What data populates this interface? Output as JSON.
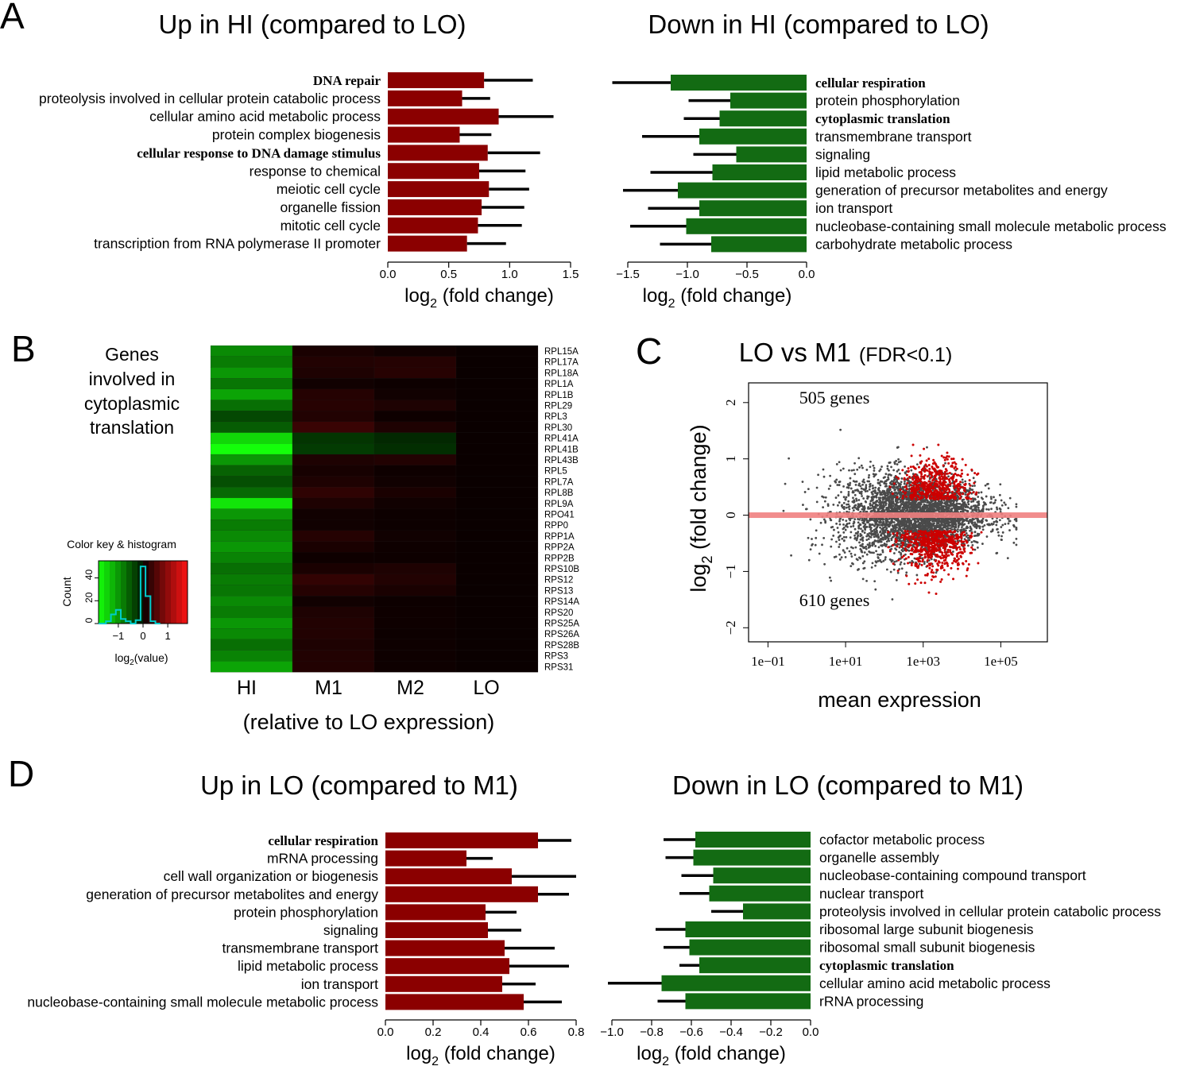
{
  "colors": {
    "up_bar": "#8b0000",
    "down_bar": "#136b13",
    "error_bar": "#000000",
    "scatter_gray": "#4a4a4a",
    "scatter_red": "#cc0000",
    "zero_line": "#f08080",
    "hist_line": "#00cccc"
  },
  "panel_labels": {
    "a": "A",
    "b": "B",
    "c": "C",
    "d": "D"
  },
  "axis_titles": {
    "log2": "log",
    "log2_sub": "2",
    "fold": " (fold change)"
  },
  "chart_data": [
    {
      "id": "A_up",
      "type": "bar",
      "orientation": "horizontal",
      "title": "Up in HI (compared to LO)",
      "xlabel": "log2 (fold change)",
      "xlim": [
        0,
        1.5
      ],
      "xticks": [
        0,
        0.5,
        1,
        1.5
      ],
      "xtick_labels": [
        "0.0",
        "0.5",
        "1.0",
        "1.5"
      ],
      "categories": [
        "DNA repair",
        "proteolysis involved in cellular protein catabolic process",
        "cellular amino acid metabolic process",
        "protein complex biogenesis",
        "cellular response to DNA damage stimulus",
        "response to chemical",
        "meiotic cell cycle",
        "organelle fission",
        "mitotic cell cycle",
        "transcription from RNA polymerase II promoter"
      ],
      "bold": [
        true,
        false,
        false,
        false,
        true,
        false,
        false,
        false,
        false,
        false
      ],
      "values": [
        0.79,
        0.61,
        0.91,
        0.59,
        0.82,
        0.75,
        0.83,
        0.77,
        0.74,
        0.65
      ],
      "errors": [
        0.4,
        0.23,
        0.45,
        0.26,
        0.43,
        0.38,
        0.33,
        0.35,
        0.36,
        0.32
      ]
    },
    {
      "id": "A_down",
      "type": "bar",
      "orientation": "horizontal",
      "title": "Down in HI (compared to LO)",
      "xlabel": "log2 (fold change)",
      "xlim": [
        -1.5,
        0
      ],
      "xticks": [
        -1.5,
        -1,
        -0.5,
        0
      ],
      "xtick_labels": [
        "−1.5",
        "−1.0",
        "−0.5",
        "0.0"
      ],
      "categories": [
        "cellular respiration",
        "protein phosphorylation",
        "cytoplasmic translation",
        "transmembrane transport",
        "signaling",
        "lipid metabolic process",
        "generation of precursor metabolites and energy",
        "ion transport",
        "nucleobase-containing small molecule metabolic process",
        "carbohydrate metabolic process"
      ],
      "bold": [
        true,
        false,
        true,
        false,
        false,
        false,
        false,
        false,
        false,
        false
      ],
      "values": [
        -1.14,
        -0.64,
        -0.73,
        -0.9,
        -0.59,
        -0.79,
        -1.08,
        -0.9,
        -1.01,
        -0.8
      ],
      "errors": [
        0.49,
        0.35,
        0.3,
        0.48,
        0.36,
        0.52,
        0.46,
        0.43,
        0.47,
        0.43
      ]
    },
    {
      "id": "B_heatmap",
      "type": "heatmap",
      "side_text": [
        "Genes",
        "involved in",
        "cytoplasmic",
        "translation"
      ],
      "columns": [
        "HI",
        "M1",
        "M2",
        "LO"
      ],
      "xlabel": "(relative to LO expression)",
      "rows": [
        "RPL15A",
        "RPL17A",
        "RPL18A",
        "RPL1A",
        "RPL1B",
        "RPL29",
        "RPL3",
        "RPL30",
        "RPL41A",
        "RPL41B",
        "RPL43B",
        "RPL5",
        "RPL7A",
        "RPL8B",
        "RPL9A",
        "RPO41",
        "RPP0",
        "RPP1A",
        "RPP2A",
        "RPP2B",
        "RPS10B",
        "RPS12",
        "RPS13",
        "RPS14A",
        "RPS20",
        "RPS25A",
        "RPS26A",
        "RPS28B",
        "RPS3",
        "RPS31"
      ],
      "values": [
        [
          -0.9,
          0.12,
          0.05,
          0
        ],
        [
          -0.8,
          0.18,
          0.2,
          0
        ],
        [
          -1.0,
          0.15,
          0.22,
          0
        ],
        [
          -0.75,
          0.05,
          0.02,
          0
        ],
        [
          -1.1,
          0.2,
          0.05,
          0
        ],
        [
          -0.7,
          0.22,
          0.15,
          0
        ],
        [
          -0.4,
          0.18,
          0.03,
          0
        ],
        [
          -0.55,
          0.35,
          0.15,
          0
        ],
        [
          -1.5,
          -0.25,
          -0.15,
          0
        ],
        [
          -1.8,
          -0.3,
          -0.2,
          0
        ],
        [
          -1.0,
          0.15,
          0.18,
          0
        ],
        [
          -0.6,
          0.1,
          0.03,
          0
        ],
        [
          -0.45,
          0.15,
          0.05,
          0
        ],
        [
          -0.65,
          0.28,
          0.12,
          0
        ],
        [
          -1.6,
          0.15,
          0.05,
          0
        ],
        [
          -1.0,
          0.05,
          0.02,
          0
        ],
        [
          -0.8,
          0.05,
          0.02,
          0
        ],
        [
          -0.9,
          0.2,
          0.05,
          0
        ],
        [
          -1.0,
          0.12,
          0.03,
          0
        ],
        [
          -0.85,
          0.03,
          0.02,
          0
        ],
        [
          -0.7,
          0.12,
          0.15,
          0
        ],
        [
          -0.8,
          0.3,
          0.18,
          0
        ],
        [
          -0.75,
          0.2,
          0.12,
          0
        ],
        [
          -0.9,
          0.05,
          0.02,
          0
        ],
        [
          -0.8,
          0.15,
          0.03,
          0
        ],
        [
          -1.0,
          0.18,
          0.03,
          0
        ],
        [
          -0.9,
          0.18,
          0.02,
          0
        ],
        [
          -0.7,
          0.15,
          0.03,
          0
        ],
        [
          -0.85,
          0.18,
          0.03,
          0
        ],
        [
          -1.1,
          0.18,
          0.03,
          0
        ]
      ],
      "color_key": {
        "title": "Color key & histogram",
        "ylabel": "Count",
        "xlabel": "log2(value)",
        "xlabel_main": "log",
        "xlabel_sub": "2",
        "xlabel_tail": "(value)",
        "xticks": [
          -1,
          0,
          1
        ],
        "xtick_labels": [
          "−1",
          "0",
          "1"
        ],
        "yticks": [
          0,
          20,
          40
        ],
        "ytick_labels": [
          "0",
          "20",
          "40"
        ],
        "xlim": [
          -1.8,
          1.8
        ],
        "ylim": [
          0,
          55
        ]
      }
    },
    {
      "id": "C_ma",
      "type": "scatter",
      "title": "LO vs M1",
      "title_note": "(FDR<0.1)",
      "xlabel": "mean expression",
      "ylabel": "log2 (fold change)",
      "xscale": "log",
      "xlim_log10": [
        -1.5,
        6.2
      ],
      "ylim": [
        -2.25,
        2.35
      ],
      "xticks_log10": [
        -1,
        1,
        3,
        5
      ],
      "xtick_labels": [
        "1e−01",
        "1e+01",
        "1e+03",
        "1e+05"
      ],
      "yticks": [
        -2,
        -1,
        0,
        1,
        2
      ],
      "ytick_labels": [
        "−2",
        "−1",
        "0",
        "1",
        "2"
      ],
      "annotations": {
        "up": "505 genes",
        "down": "610 genes"
      },
      "n_up": 505,
      "n_down": 610,
      "n_gray": 3600
    },
    {
      "id": "D_up",
      "type": "bar",
      "orientation": "horizontal",
      "title": "Up in LO (compared to M1)",
      "xlabel": "log2 (fold change)",
      "xlim": [
        0,
        0.8
      ],
      "xticks": [
        0,
        0.2,
        0.4,
        0.6,
        0.8
      ],
      "xtick_labels": [
        "0.0",
        "0.2",
        "0.4",
        "0.6",
        "0.8"
      ],
      "categories": [
        "cellular respiration",
        "mRNA processing",
        "cell wall organization or biogenesis",
        "generation of precursor metabolites and energy",
        "protein phosphorylation",
        "signaling",
        "transmembrane transport",
        "lipid metabolic process",
        "ion transport",
        "nucleobase-containing small molecule metabolic process"
      ],
      "bold": [
        true,
        false,
        false,
        false,
        false,
        false,
        false,
        false,
        false,
        false
      ],
      "values": [
        0.64,
        0.34,
        0.53,
        0.64,
        0.42,
        0.43,
        0.5,
        0.52,
        0.49,
        0.58
      ],
      "errors": [
        0.14,
        0.11,
        0.27,
        0.13,
        0.13,
        0.14,
        0.21,
        0.25,
        0.14,
        0.16
      ]
    },
    {
      "id": "D_down",
      "type": "bar",
      "orientation": "horizontal",
      "title": "Down in LO (compared to M1)",
      "xlabel": "log2 (fold change)",
      "xlim": [
        -1.0,
        0
      ],
      "xticks": [
        -1,
        -0.8,
        -0.6,
        -0.4,
        -0.2,
        0
      ],
      "xtick_labels": [
        "−1.0",
        "−0.8",
        "−0.6",
        "−0.4",
        "−0.2",
        "0.0"
      ],
      "categories": [
        "cofactor metabolic process",
        "organelle assembly",
        "nucleobase-containing compound transport",
        "nuclear transport",
        "proteolysis involved in cellular protein catabolic process",
        "ribosomal large subunit biogenesis",
        "ribosomal small subunit biogenesis",
        "cytoplasmic translation",
        "cellular amino acid metabolic process",
        "rRNA processing"
      ],
      "bold": [
        false,
        false,
        false,
        false,
        false,
        false,
        false,
        true,
        false,
        false
      ],
      "values": [
        -0.58,
        -0.59,
        -0.49,
        -0.51,
        -0.34,
        -0.63,
        -0.61,
        -0.56,
        -0.75,
        -0.63
      ],
      "errors": [
        0.16,
        0.14,
        0.16,
        0.15,
        0.16,
        0.15,
        0.13,
        0.1,
        0.27,
        0.14
      ]
    }
  ]
}
